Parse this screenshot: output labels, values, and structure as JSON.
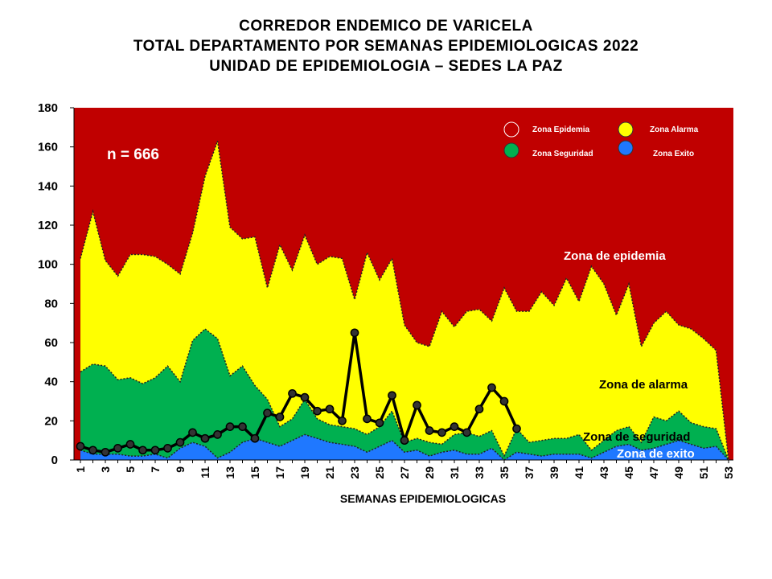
{
  "titles": [
    "CORREDOR ENDEMICO DE VARICELA",
    "TOTAL DEPARTAMENTO POR SEMANAS EPIDEMIOLOGICAS 2022",
    "UNIDAD DE EPIDEMIOLOGIA – SEDES LA PAZ"
  ],
  "colors": {
    "epidemia": "#c00000",
    "alarma": "#ffff00",
    "seguridad": "#00b050",
    "exito": "#1f78ff",
    "cases_line": "#000000",
    "marker": "#333333"
  },
  "chart_data": {
    "type": "area",
    "title": "",
    "xlabel": "SEMANAS EPIDEMIOLOGICAS",
    "ylabel": "",
    "ylim": [
      0,
      180
    ],
    "yticks": [
      0,
      20,
      40,
      60,
      80,
      100,
      120,
      140,
      160,
      180
    ],
    "xlim": [
      1,
      53
    ],
    "xticks": [
      1,
      3,
      5,
      7,
      9,
      11,
      13,
      15,
      17,
      19,
      21,
      23,
      25,
      27,
      29,
      31,
      33,
      35,
      37,
      39,
      41,
      43,
      45,
      47,
      49,
      51,
      53
    ],
    "weeks": [
      1,
      2,
      3,
      4,
      5,
      6,
      7,
      8,
      9,
      10,
      11,
      12,
      13,
      14,
      15,
      16,
      17,
      18,
      19,
      20,
      21,
      22,
      23,
      24,
      25,
      26,
      27,
      28,
      29,
      30,
      31,
      32,
      33,
      34,
      35,
      36,
      37,
      38,
      39,
      40,
      41,
      42,
      43,
      44,
      45,
      46,
      47,
      48,
      49,
      50,
      51,
      52,
      53
    ],
    "series": [
      {
        "name": "Zona Alarma",
        "kind": "band",
        "values": [
          103,
          127,
          102,
          94,
          105,
          105,
          104,
          100,
          95,
          116,
          145,
          163,
          119,
          113,
          114,
          88,
          110,
          97,
          115,
          100,
          104,
          103,
          82,
          106,
          92,
          103,
          69,
          60,
          58,
          76,
          68,
          76,
          77,
          71,
          88,
          76,
          76,
          86,
          79,
          93,
          81,
          99,
          90,
          74,
          90,
          58,
          70,
          76,
          69,
          67,
          62,
          56,
          0
        ]
      },
      {
        "name": "Zona Seguridad",
        "kind": "band",
        "values": [
          45,
          49,
          48,
          41,
          42,
          39,
          42,
          48,
          40,
          61,
          67,
          62,
          43,
          48,
          38,
          31,
          17,
          21,
          31,
          21,
          18,
          17,
          16,
          13,
          17,
          25,
          9,
          11,
          9,
          8,
          13,
          14,
          12,
          15,
          2,
          16,
          9,
          10,
          11,
          11,
          13,
          5,
          10,
          15,
          17,
          9,
          22,
          20,
          25,
          19,
          17,
          16,
          0
        ]
      },
      {
        "name": "Zona Exito",
        "kind": "band",
        "values": [
          5,
          3,
          3,
          3,
          2,
          2,
          3,
          1,
          6,
          9,
          7,
          1,
          4,
          9,
          11,
          9,
          7,
          10,
          13,
          11,
          9,
          8,
          7,
          4,
          7,
          10,
          4,
          5,
          2,
          4,
          5,
          3,
          3,
          6,
          0,
          4,
          3,
          2,
          3,
          3,
          3,
          1,
          4,
          7,
          8,
          5,
          6,
          8,
          10,
          8,
          6,
          7,
          0
        ]
      },
      {
        "name": "Casos",
        "kind": "line",
        "values": [
          7,
          5,
          4,
          6,
          8,
          5,
          5,
          6,
          9,
          14,
          11,
          13,
          17,
          17,
          11,
          24,
          22,
          34,
          32,
          25,
          26,
          20,
          65,
          21,
          19,
          33,
          10,
          28,
          15,
          14,
          17,
          14,
          26,
          37,
          30,
          16
        ]
      }
    ],
    "legend": {
      "placement": "top-right",
      "items": [
        {
          "label": "Zona Epidemia",
          "color": "#c00000"
        },
        {
          "label": "Zona Alarma",
          "color": "#ffff00"
        },
        {
          "label": "Zona Seguridad",
          "color": "#00b050"
        },
        {
          "label": "Zona Exito",
          "color": "#1f78ff"
        }
      ]
    },
    "annotations": {
      "n": "n = 666",
      "epidemia": "Zona de epidemia",
      "alarma": "Zona de alarma",
      "seguridad": "Zona de  seguridad",
      "exito": "Zona de exito"
    }
  }
}
